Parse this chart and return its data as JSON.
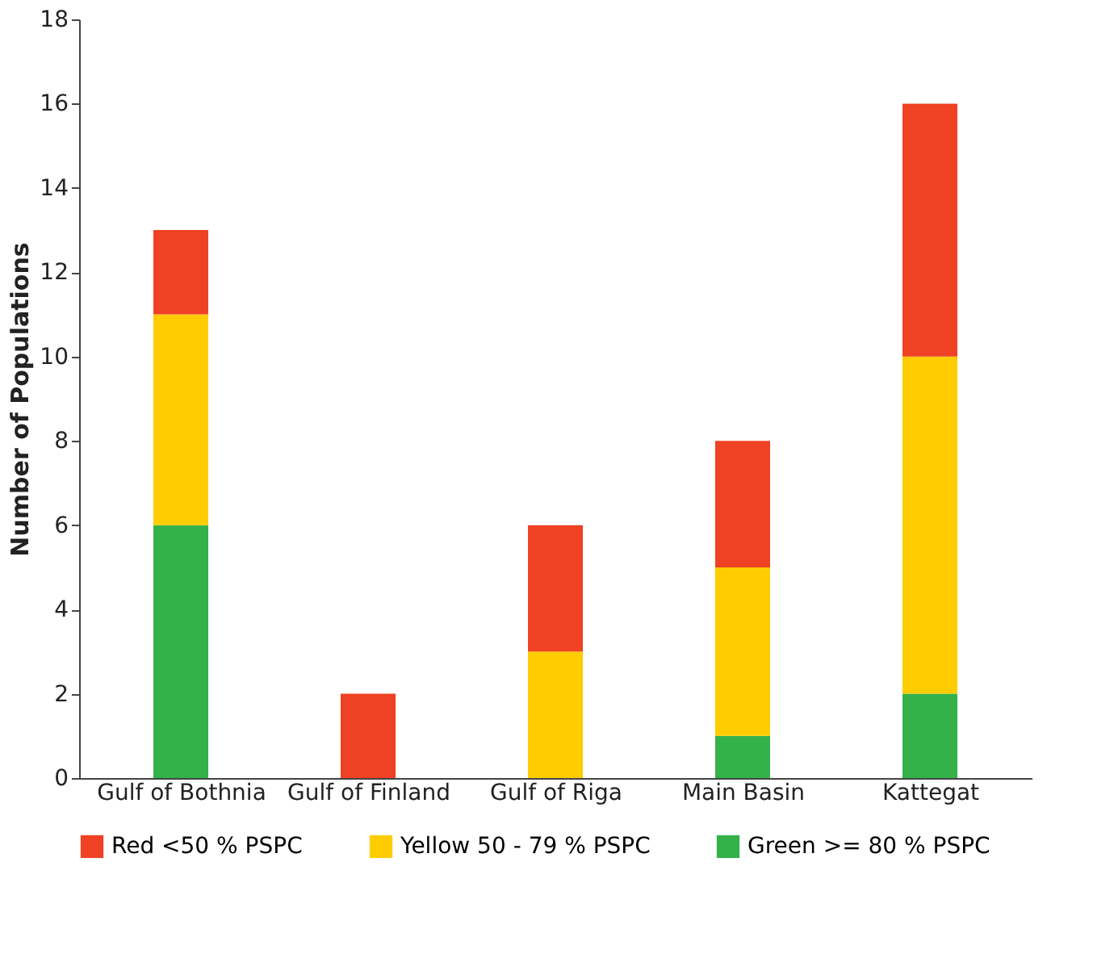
{
  "chart_data": {
    "type": "bar",
    "stacked": true,
    "ylabel": "Number of Populations",
    "categories": [
      "Gulf of Bothnia",
      "Gulf of Finland",
      "Gulf of Riga",
      "Main Basin",
      "Kattegat"
    ],
    "series": [
      {
        "name": "Green >= 80 % PSPC",
        "color": "#33b24a",
        "values": [
          6,
          0,
          0,
          1,
          2
        ]
      },
      {
        "name": "Yellow 50 - 79 % PSPC",
        "color": "#ffcc00",
        "values": [
          5,
          0,
          3,
          4,
          8
        ]
      },
      {
        "name": "Red <50 % PSPC",
        "color": "#ef4123",
        "values": [
          2,
          2,
          3,
          3,
          6
        ]
      }
    ],
    "ylim": [
      0,
      18
    ],
    "yticks": [
      0,
      2,
      4,
      6,
      8,
      10,
      12,
      14,
      16,
      18
    ],
    "grid": false,
    "legend": "bottom"
  }
}
